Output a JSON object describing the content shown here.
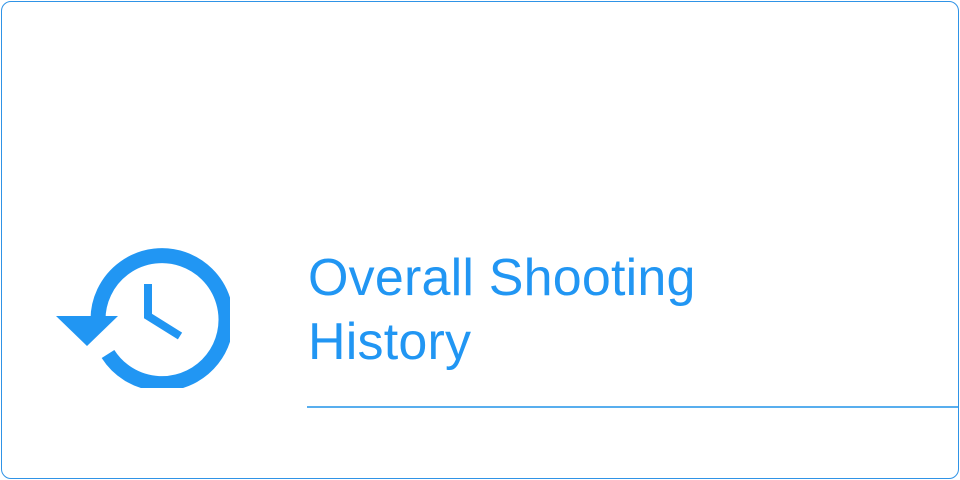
{
  "card": {
    "title_line1": "Overall Shooting",
    "title_line2": "History",
    "icon": "history-clock-icon",
    "accent_color": "#2196f3",
    "border_color": "#2f93e6"
  }
}
